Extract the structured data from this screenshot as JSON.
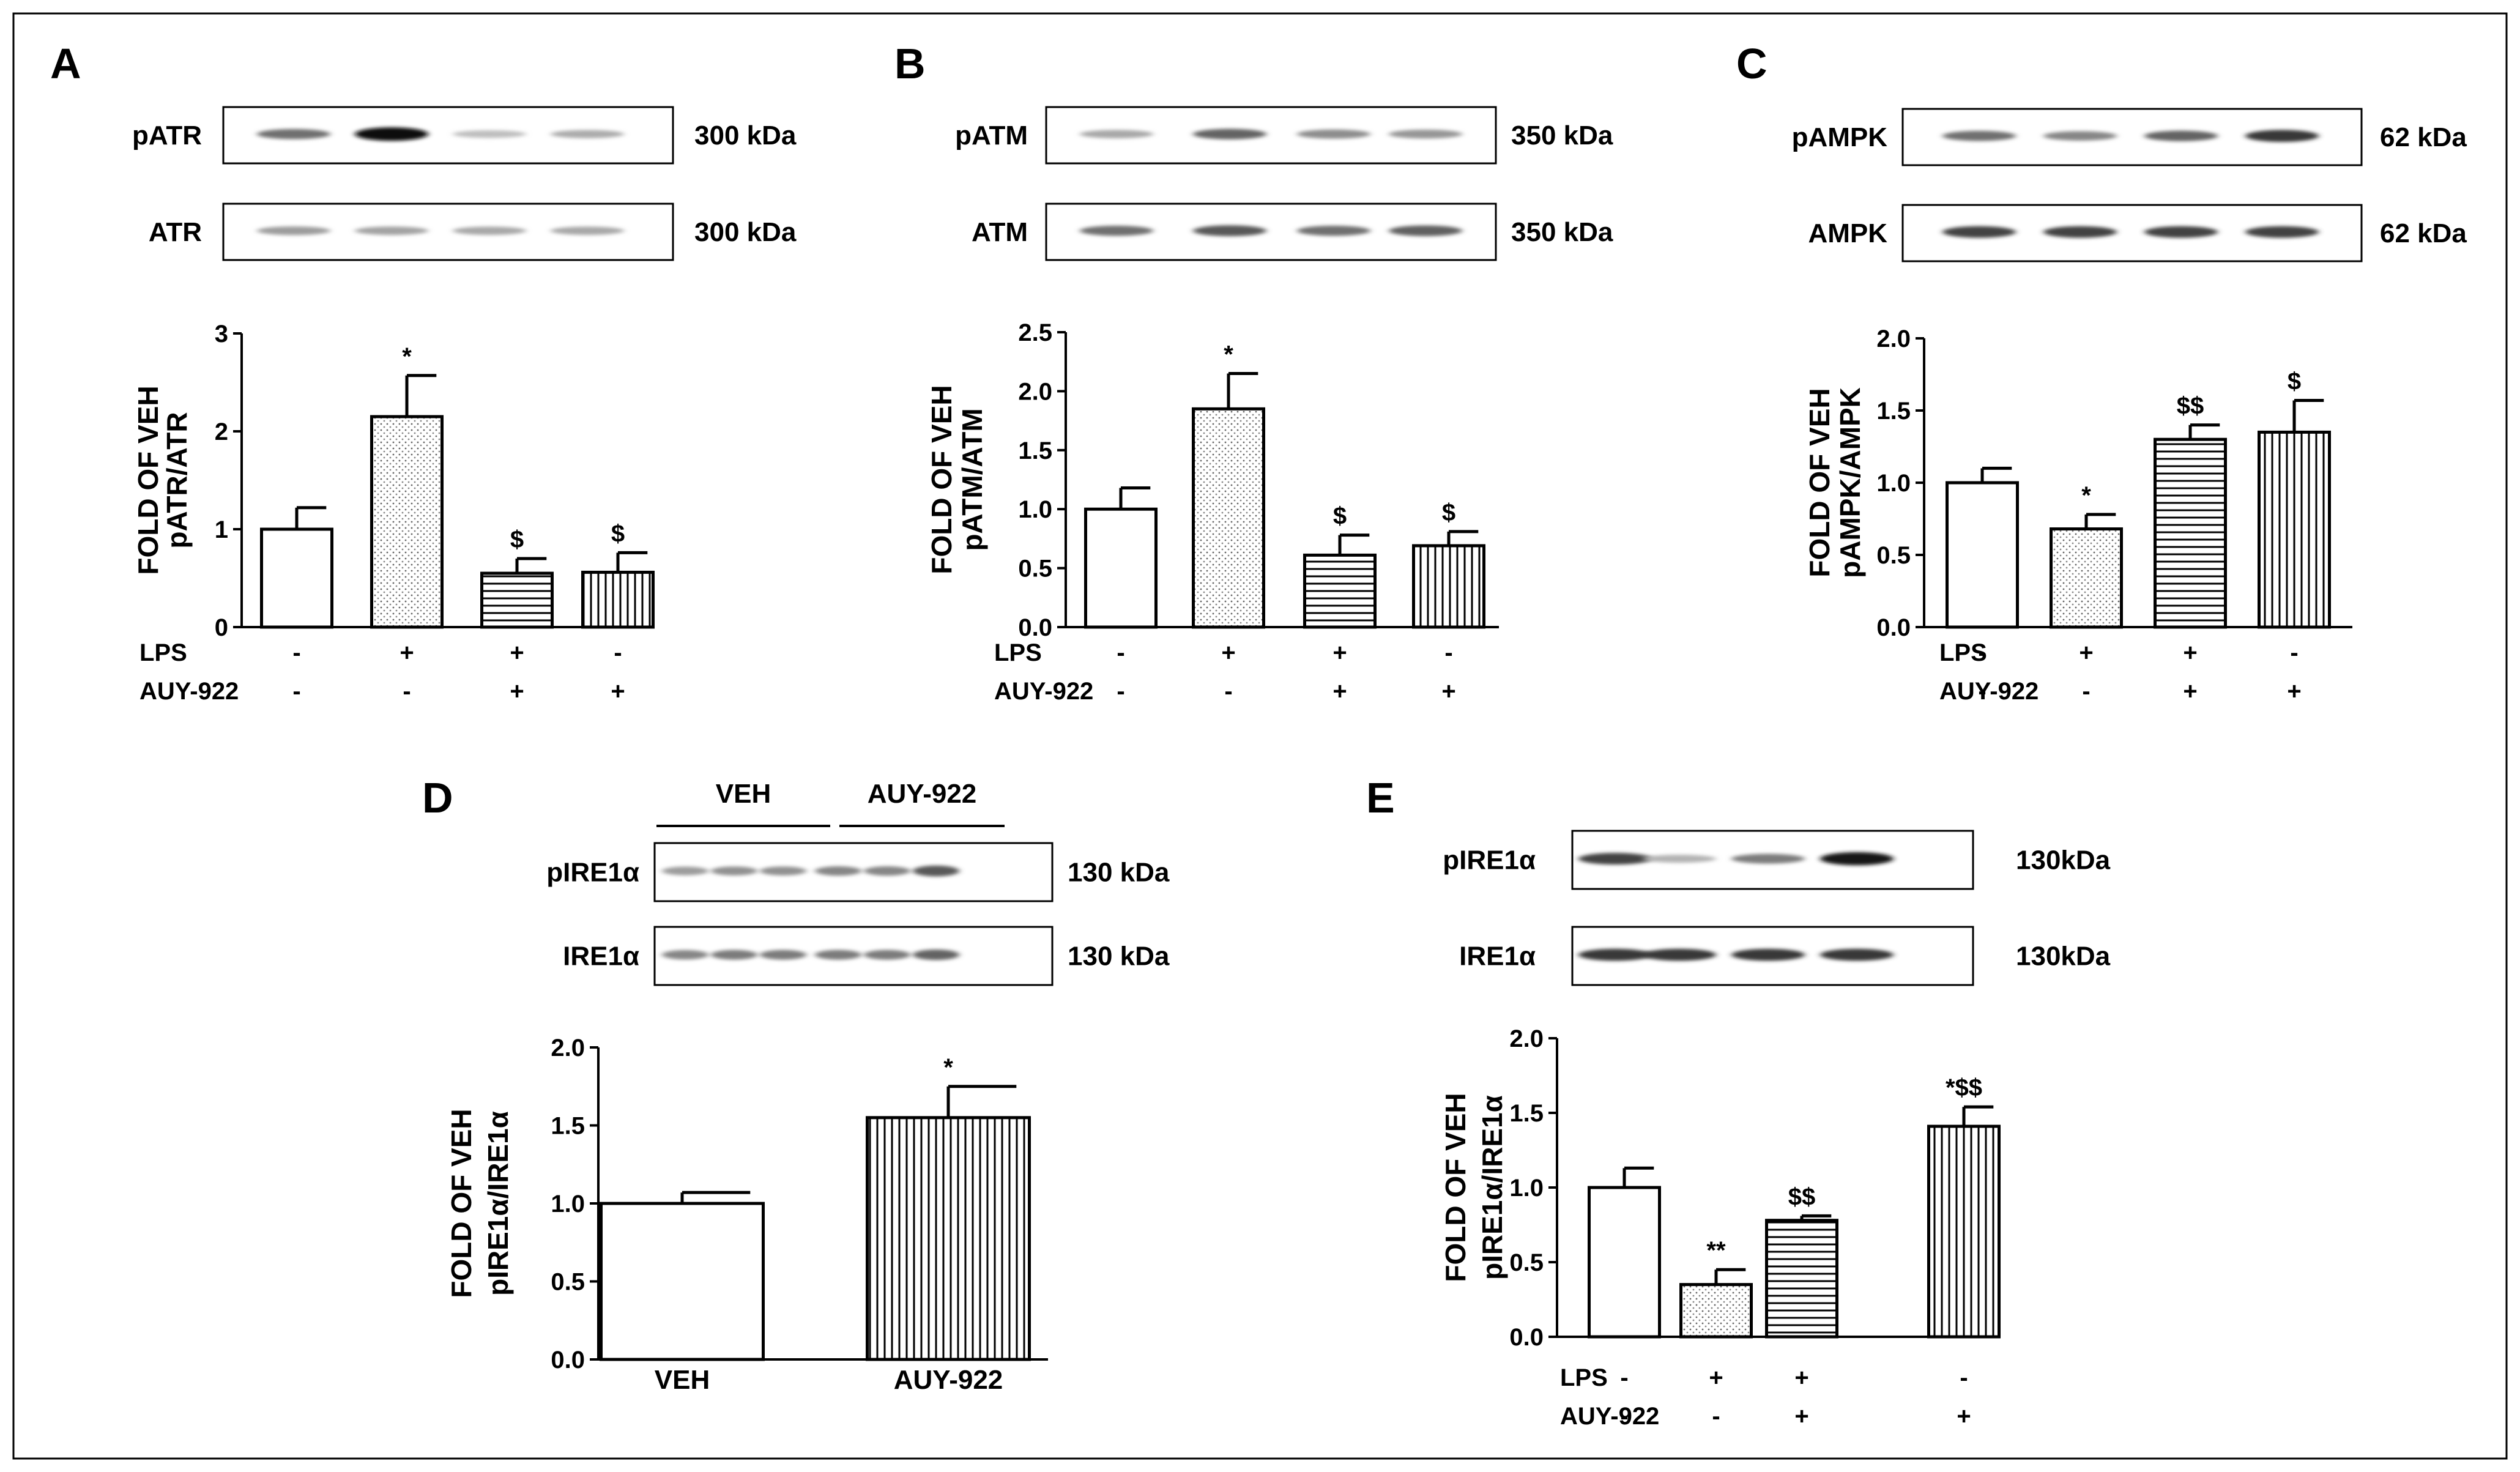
{
  "chart_data": [
    {
      "panel": "A",
      "type": "bar",
      "blot_rows": [
        {
          "label": "pATR",
          "kda": "300 kDa",
          "intensity": [
            0.55,
            1.0,
            0.2,
            0.28
          ]
        },
        {
          "label": "ATR",
          "kda": "300 kDa",
          "intensity": [
            0.35,
            0.32,
            0.3,
            0.3
          ]
        }
      ],
      "ylabel_lines": [
        "FOLD OF VEH",
        "pATR/ATR"
      ],
      "ylim": [
        0,
        3
      ],
      "yticks": [
        "0",
        "1",
        "2",
        "3"
      ],
      "values": [
        1.0,
        2.15,
        0.55,
        0.56
      ],
      "errors": [
        0.22,
        0.42,
        0.15,
        0.2
      ],
      "annotations": [
        "",
        "*",
        "$",
        "$"
      ],
      "patterns": [
        "white",
        "dots",
        "hlines",
        "vlines"
      ],
      "conditions": [
        {
          "label": "LPS",
          "values": [
            "-",
            "+",
            "+",
            "-"
          ]
        },
        {
          "label": "AUY-922",
          "values": [
            "-",
            "-",
            "+",
            "+"
          ]
        }
      ]
    },
    {
      "panel": "B",
      "type": "bar",
      "blot_rows": [
        {
          "label": "pATM",
          "kda": "350 kDa",
          "intensity": [
            0.3,
            0.6,
            0.42,
            0.38
          ]
        },
        {
          "label": "ATM",
          "kda": "350 kDa",
          "intensity": [
            0.55,
            0.65,
            0.55,
            0.62
          ]
        }
      ],
      "ylabel_lines": [
        "FOLD OF VEH",
        "pATM/ATM"
      ],
      "ylim": [
        0,
        2.5
      ],
      "yticks": [
        "0.0",
        "0.5",
        "1.0",
        "1.5",
        "2.0",
        "2.5"
      ],
      "values": [
        1.0,
        1.85,
        0.61,
        0.69
      ],
      "errors": [
        0.18,
        0.3,
        0.17,
        0.12
      ],
      "annotations": [
        "",
        "*",
        "$",
        "$"
      ],
      "patterns": [
        "white",
        "dots",
        "hlines",
        "vlines"
      ],
      "conditions": [
        {
          "label": "LPS",
          "values": [
            "-",
            "+",
            "+",
            "-"
          ]
        },
        {
          "label": "AUY-922",
          "values": [
            "-",
            "-",
            "+",
            "+"
          ]
        }
      ]
    },
    {
      "panel": "C",
      "type": "bar",
      "blot_rows": [
        {
          "label": "pAMPK",
          "kda": "62 kDa",
          "intensity": [
            0.55,
            0.45,
            0.6,
            0.8
          ]
        },
        {
          "label": "AMPK",
          "kda": "62 kDa",
          "intensity": [
            0.75,
            0.75,
            0.75,
            0.75
          ]
        }
      ],
      "ylabel_lines": [
        "FOLD OF VEH",
        "pAMPK/AMPK"
      ],
      "ylim": [
        0,
        2
      ],
      "yticks": [
        "0.0",
        "0.5",
        "1.0",
        "1.5",
        "2.0"
      ],
      "values": [
        1.0,
        0.68,
        1.3,
        1.35
      ],
      "errors": [
        0.1,
        0.1,
        0.1,
        0.22
      ],
      "annotations": [
        "",
        "*",
        "$$",
        "$"
      ],
      "patterns": [
        "white",
        "dots",
        "hlines",
        "vlines"
      ],
      "conditions": [
        {
          "label": "LPS",
          "values": [
            "-",
            "+",
            "+",
            "-"
          ]
        },
        {
          "label": "AUY-922",
          "values": [
            "-",
            "-",
            "+",
            "+"
          ]
        }
      ]
    },
    {
      "panel": "D",
      "type": "bar",
      "group_labels": [
        "VEH",
        "AUY-922"
      ],
      "blot_rows": [
        {
          "label": "pIRE1α",
          "kda": "130 kDa",
          "intensity": [
            0.35,
            0.4,
            0.4,
            0.45,
            0.45,
            0.65
          ]
        },
        {
          "label": "IRE1α",
          "kda": "130 kDa",
          "intensity": [
            0.45,
            0.5,
            0.5,
            0.5,
            0.5,
            0.6
          ]
        }
      ],
      "ylabel_lines": [
        "FOLD OF VEH",
        "pIRE1α/IRE1α"
      ],
      "ylim": [
        0,
        2
      ],
      "yticks": [
        "0.0",
        "0.5",
        "1.0",
        "1.5",
        "2.0"
      ],
      "categories": [
        "VEH",
        "AUY-922"
      ],
      "values": [
        1.0,
        1.55
      ],
      "errors": [
        0.07,
        0.2
      ],
      "annotations": [
        "",
        "*"
      ],
      "patterns": [
        "white",
        "vlines"
      ]
    },
    {
      "panel": "E",
      "type": "bar",
      "blot_rows": [
        {
          "label": "pIRE1α",
          "kda": "130kDa",
          "intensity": [
            0.75,
            0.25,
            0.5,
            0.95
          ]
        },
        {
          "label": "IRE1α",
          "kda": "130kDa",
          "intensity": [
            0.8,
            0.8,
            0.8,
            0.8
          ]
        }
      ],
      "ylabel_lines": [
        "FOLD OF VEH",
        "pIRE1α/IRE1α"
      ],
      "ylim": [
        0,
        2
      ],
      "yticks": [
        "0.0",
        "0.5",
        "1.0",
        "1.5",
        "2.0"
      ],
      "values": [
        1.0,
        0.35,
        0.78,
        1.41
      ],
      "errors": [
        0.13,
        0.1,
        0.03,
        0.13
      ],
      "annotations": [
        "",
        "**",
        "$$",
        "*$$"
      ],
      "patterns": [
        "white",
        "dots",
        "hlines",
        "vlines"
      ],
      "conditions": [
        {
          "label": "LPS",
          "values": [
            "-",
            "+",
            "+",
            "-"
          ]
        },
        {
          "label": "AUY-922",
          "values": [
            "-",
            "-",
            "+",
            "+"
          ]
        }
      ]
    }
  ]
}
